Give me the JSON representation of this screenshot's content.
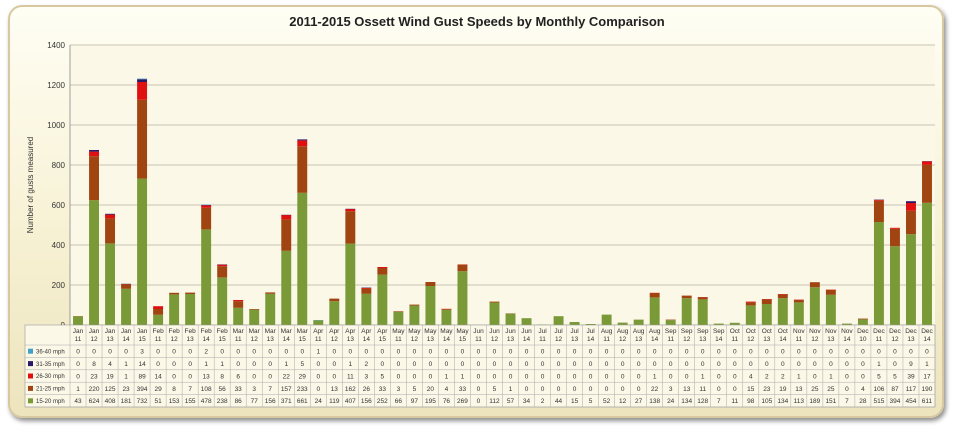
{
  "chart_data": {
    "type": "bar",
    "stacked": true,
    "title": "2011-2015 Ossett Wind Gust Speeds by Monthly Comparison",
    "ylabel": "Number of gusts measured",
    "ylim": [
      0,
      1400
    ],
    "yticks": [
      "0",
      "200",
      "400",
      "600",
      "800",
      "1000",
      "1200",
      "1400"
    ],
    "grid": true,
    "legend": "data-table-left",
    "categories": [
      [
        "Jan",
        "11"
      ],
      [
        "Jan",
        "12"
      ],
      [
        "Jan",
        "13"
      ],
      [
        "Jan",
        "14"
      ],
      [
        "Jan",
        "15"
      ],
      [
        "Feb",
        "11"
      ],
      [
        "Feb",
        "12"
      ],
      [
        "Feb",
        "13"
      ],
      [
        "Feb",
        "14"
      ],
      [
        "Feb",
        "15"
      ],
      [
        "Mar",
        "11"
      ],
      [
        "Mar",
        "12"
      ],
      [
        "Mar",
        "13"
      ],
      [
        "Mar",
        "14"
      ],
      [
        "Mar",
        "15"
      ],
      [
        "Apr",
        "11"
      ],
      [
        "Apr",
        "12"
      ],
      [
        "Apr",
        "13"
      ],
      [
        "Apr",
        "14"
      ],
      [
        "Apr",
        "15"
      ],
      [
        "May",
        "11"
      ],
      [
        "May",
        "12"
      ],
      [
        "May",
        "13"
      ],
      [
        "May",
        "14"
      ],
      [
        "May",
        "15"
      ],
      [
        "Jun",
        "11"
      ],
      [
        "Jun",
        "12"
      ],
      [
        "Jun",
        "13"
      ],
      [
        "Jun",
        "14"
      ],
      [
        "Jul",
        "11"
      ],
      [
        "Jul",
        "12"
      ],
      [
        "Jul",
        "13"
      ],
      [
        "Jul",
        "14"
      ],
      [
        "Aug",
        "11"
      ],
      [
        "Aug",
        "12"
      ],
      [
        "Aug",
        "13"
      ],
      [
        "Aug",
        "14"
      ],
      [
        "Sep",
        "11"
      ],
      [
        "Sep",
        "12"
      ],
      [
        "Sep",
        "13"
      ],
      [
        "Sep",
        "14"
      ],
      [
        "Oct",
        "11"
      ],
      [
        "Oct",
        "12"
      ],
      [
        "Oct",
        "13"
      ],
      [
        "Oct",
        "14"
      ],
      [
        "Nov",
        "11"
      ],
      [
        "Nov",
        "12"
      ],
      [
        "Nov",
        "13"
      ],
      [
        "Nov",
        "14"
      ],
      [
        "Dec",
        "10"
      ],
      [
        "Dec",
        "11"
      ],
      [
        "Dec",
        "12"
      ],
      [
        "Dec",
        "13"
      ],
      [
        "Dec",
        "14"
      ]
    ],
    "series": [
      {
        "name": "15-20 mph",
        "color": "#7a9a38",
        "values": [
          43,
          624,
          408,
          181,
          732,
          51,
          153,
          155,
          478,
          238,
          86,
          77,
          156,
          371,
          661,
          24,
          119,
          407,
          156,
          252,
          66,
          97,
          195,
          76,
          269,
          0,
          112,
          57,
          34,
          2,
          44,
          15,
          5,
          52,
          12,
          27,
          138,
          24,
          134,
          128,
          7,
          11,
          98,
          105,
          134,
          113,
          189,
          151,
          7,
          28,
          515,
          394,
          454,
          611
        ]
      },
      {
        "name": "21-25 mph",
        "color": "#a04512",
        "values": [
          1,
          220,
          125,
          23,
          394,
          29,
          8,
          7,
          108,
          56,
          33,
          3,
          7,
          157,
          233,
          0,
          13,
          162,
          26,
          33,
          3,
          5,
          20,
          4,
          33,
          0,
          5,
          1,
          0,
          0,
          0,
          0,
          0,
          0,
          0,
          0,
          22,
          3,
          13,
          11,
          0,
          0,
          15,
          23,
          19,
          13,
          25,
          25,
          0,
          4,
          106,
          87,
          117,
          190
        ]
      },
      {
        "name": "26-30 mph",
        "color": "#e01010",
        "values": [
          0,
          23,
          19,
          1,
          89,
          14,
          0,
          0,
          13,
          8,
          6,
          0,
          0,
          22,
          29,
          0,
          0,
          11,
          3,
          5,
          0,
          0,
          0,
          1,
          1,
          0,
          0,
          0,
          0,
          0,
          0,
          0,
          0,
          0,
          0,
          0,
          1,
          0,
          0,
          1,
          0,
          0,
          4,
          2,
          2,
          1,
          0,
          1,
          0,
          0,
          5,
          5,
          39,
          17
        ]
      },
      {
        "name": "31-35 mph",
        "color": "#2a1a66",
        "values": [
          0,
          8,
          4,
          1,
          14,
          0,
          0,
          0,
          1,
          1,
          0,
          0,
          0,
          1,
          5,
          0,
          0,
          1,
          2,
          0,
          0,
          0,
          0,
          0,
          0,
          0,
          0,
          0,
          0,
          0,
          0,
          0,
          0,
          0,
          0,
          0,
          0,
          0,
          0,
          0,
          0,
          0,
          0,
          0,
          0,
          0,
          0,
          0,
          0,
          0,
          1,
          0,
          9,
          1
        ]
      },
      {
        "name": "36-40 mph",
        "color": "#3fa0c8",
        "values": [
          0,
          0,
          0,
          0,
          3,
          0,
          0,
          0,
          2,
          0,
          0,
          0,
          0,
          0,
          0,
          1,
          0,
          0,
          0,
          0,
          0,
          0,
          0,
          0,
          0,
          0,
          0,
          0,
          0,
          0,
          0,
          0,
          0,
          0,
          0,
          0,
          0,
          0,
          0,
          0,
          0,
          0,
          0,
          0,
          0,
          0,
          0,
          0,
          0,
          0,
          0,
          0,
          0,
          0
        ]
      }
    ]
  }
}
